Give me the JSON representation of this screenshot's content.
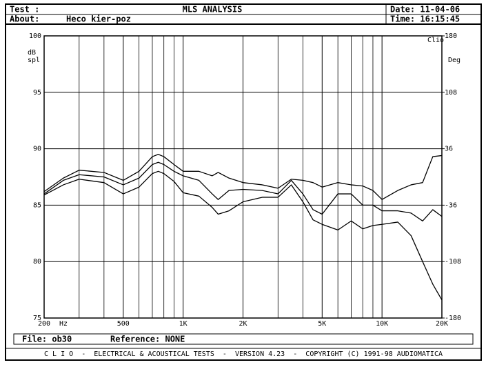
{
  "header": {
    "test_label": "Test :",
    "title": "MLS ANALYSIS",
    "date": "Date: 11-04-06",
    "about_label": "About:",
    "about": "Heco kier-poz",
    "time": "Time: 16:15:45"
  },
  "chart_data": {
    "type": "line",
    "log_x": true,
    "grid": true,
    "color": "#000000",
    "brand": "Clio",
    "ylabel": [
      "dB",
      "spl"
    ],
    "y2label": "Deg",
    "xlabel": "Hz",
    "x": [
      200,
      250,
      300,
      400,
      500,
      600,
      700,
      750,
      800,
      900,
      1000,
      1200,
      1400,
      1500,
      1700,
      2000,
      2500,
      3000,
      3500,
      4000,
      4500,
      5000,
      6000,
      7000,
      8000,
      9000,
      10000,
      12000,
      14000,
      16000,
      18000,
      20000
    ],
    "series": [
      {
        "color": "#000000",
        "values": [
          86.2,
          87.4,
          88.1,
          87.9,
          87.2,
          88.0,
          89.3,
          89.5,
          89.3,
          88.6,
          88.0,
          88.0,
          87.6,
          87.9,
          87.4,
          87.0,
          86.8,
          86.5,
          87.3,
          87.2,
          87.0,
          86.6,
          87.0,
          86.8,
          86.7,
          86.3,
          85.5,
          86.3,
          86.8,
          87.0,
          89.3,
          89.4
        ]
      },
      {
        "color": "#000000",
        "values": [
          86.0,
          87.2,
          87.7,
          87.5,
          86.8,
          87.4,
          88.6,
          88.8,
          88.6,
          88.0,
          87.6,
          87.2,
          86.0,
          85.5,
          86.3,
          86.4,
          86.3,
          86.0,
          87.2,
          86.0,
          84.6,
          84.2,
          86.0,
          86.0,
          85.0,
          85.0,
          84.5,
          84.5,
          84.3,
          83.6,
          84.6,
          84.0
        ]
      },
      {
        "color": "#000000",
        "values": [
          85.9,
          86.8,
          87.3,
          87.0,
          86.0,
          86.6,
          87.8,
          88.0,
          87.8,
          87.1,
          86.1,
          85.8,
          84.8,
          84.2,
          84.5,
          85.3,
          85.7,
          85.7,
          86.8,
          85.3,
          83.7,
          83.3,
          82.8,
          83.6,
          82.9,
          83.2,
          83.3,
          83.5,
          82.3,
          80.0,
          78.0,
          76.6
        ]
      }
    ],
    "xlim": [
      200,
      20000
    ],
    "xticks": [
      200,
      500,
      {
        "value": 1000,
        "label": "1K"
      },
      {
        "value": 2000,
        "label": "2K"
      },
      {
        "value": 5000,
        "label": "5K"
      },
      {
        "value": 10000,
        "label": "10K"
      },
      {
        "value": 20000,
        "label": "20K"
      }
    ],
    "xgrid_minor": [
      300,
      400,
      600,
      700,
      800,
      900,
      3000,
      4000,
      6000,
      7000,
      8000,
      9000
    ],
    "ylim": [
      75,
      100
    ],
    "yticks": [
      75,
      80,
      85,
      90,
      95,
      100
    ],
    "y2lim": [
      -180,
      180
    ],
    "y2ticks": [
      -180,
      -108,
      -36,
      36,
      108,
      180
    ]
  },
  "footer": {
    "file": "File: ob30",
    "reference": "Reference: NONE",
    "credits": "C L I O  -  ELECTRICAL & ACOUSTICAL TESTS  -  VERSION 4.23  -  COPYRIGHT (C) 1991-98 AUDIOMATICA"
  }
}
